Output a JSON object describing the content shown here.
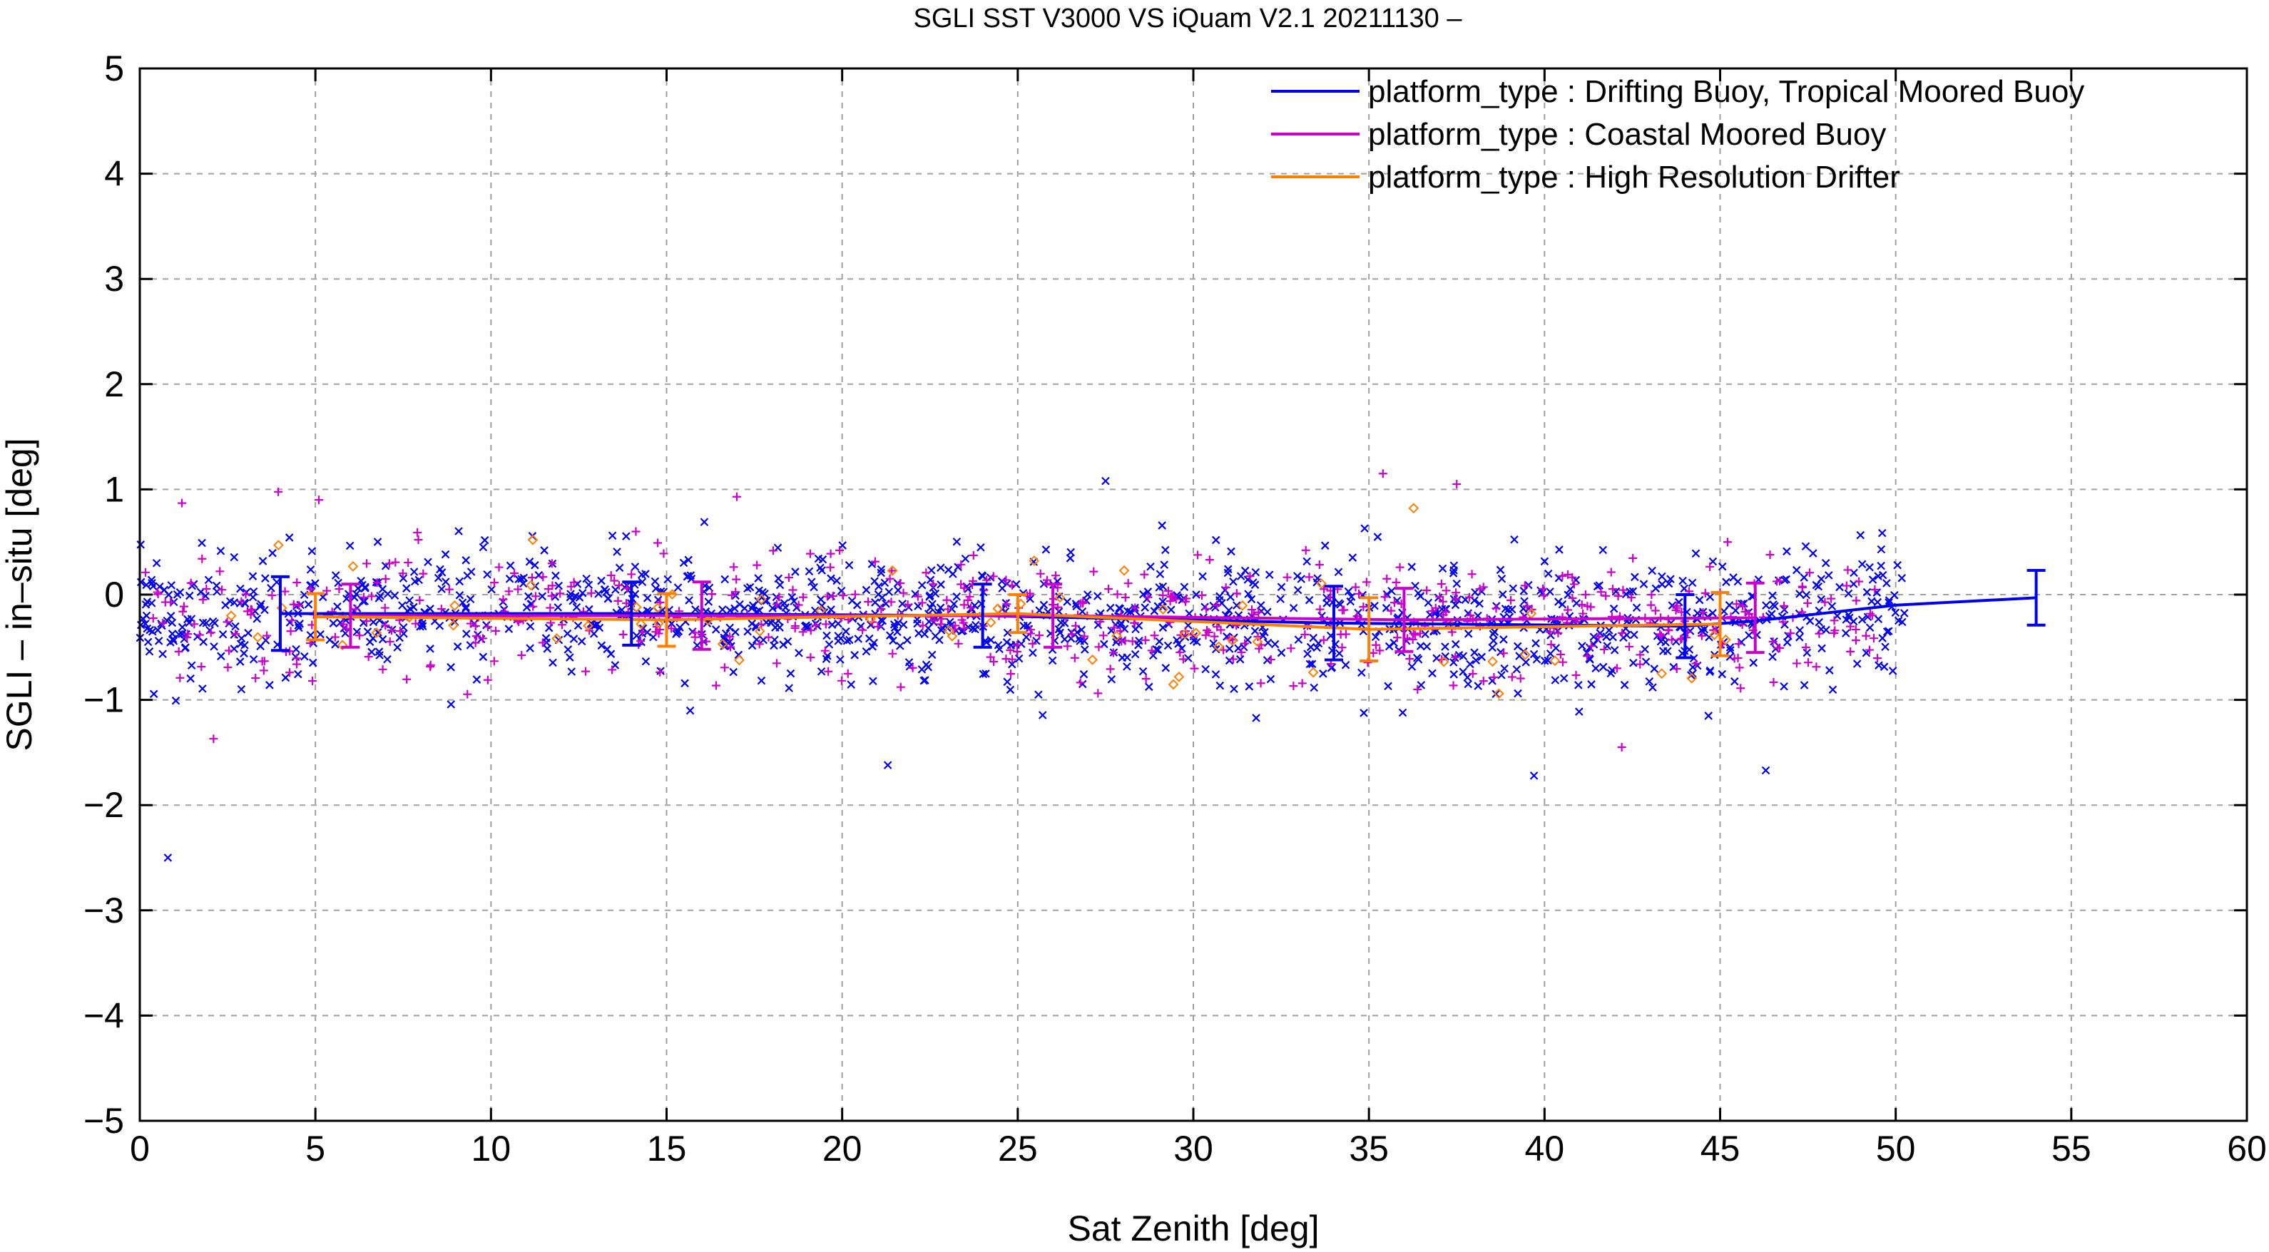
{
  "chart_data": {
    "type": "scatter",
    "title": "SGLI SST V3000 VS iQuam V2.1 20211130 –",
    "xlabel": "Sat Zenith [deg]",
    "ylabel": "SGLI – in–situ [deg]",
    "xlim": [
      0,
      60
    ],
    "ylim": [
      -5,
      5
    ],
    "x_ticks": [
      0,
      5,
      10,
      15,
      20,
      25,
      30,
      35,
      40,
      45,
      50,
      55,
      60
    ],
    "y_ticks": [
      -5,
      -4,
      -3,
      -2,
      -1,
      0,
      1,
      2,
      3,
      4,
      5
    ],
    "x_tick_labels": [
      "0",
      "5",
      "10",
      "15",
      "20",
      "25",
      "30",
      "35",
      "40",
      "45",
      "50",
      "55",
      "60"
    ],
    "y_tick_labels": [
      "−5",
      "−4",
      "−3",
      "−2",
      "−1",
      "0",
      "1",
      "2",
      "3",
      "4",
      "5"
    ],
    "grid": true,
    "legend_position": "top-right",
    "series": [
      {
        "name": "platform_type : Drifting Buoy, Tropical Moored Buoy",
        "color": "#0000ee",
        "marker": "x",
        "mean_x": [
          4,
          14,
          24,
          34,
          44,
          46,
          50,
          54
        ],
        "mean_y": [
          -0.18,
          -0.18,
          -0.2,
          -0.27,
          -0.3,
          -0.25,
          -0.1,
          -0.03
        ],
        "std": [
          0.35,
          0.3,
          0.3,
          0.35,
          0.3,
          0.3,
          0.25,
          0.26
        ],
        "errorbar_x": [
          4,
          14,
          24,
          34,
          44,
          54
        ]
      },
      {
        "name": "platform_type : Coastal Moored Buoy",
        "color": "#cc00cc",
        "marker": "+",
        "mean_x": [
          6,
          16,
          26,
          36,
          46
        ],
        "mean_y": [
          -0.2,
          -0.2,
          -0.2,
          -0.24,
          -0.22
        ],
        "std": [
          0.3,
          0.32,
          0.3,
          0.3,
          0.33
        ],
        "errorbar_x": [
          6,
          16,
          26,
          36,
          46
        ]
      },
      {
        "name": "platform_type : High Resolution Drifter",
        "color": "#ff8000",
        "marker": "diamond",
        "mean_x": [
          5,
          15,
          25,
          35,
          45
        ],
        "mean_y": [
          -0.21,
          -0.24,
          -0.18,
          -0.33,
          -0.28
        ],
        "std": [
          0.22,
          0.25,
          0.18,
          0.3,
          0.3
        ],
        "errorbar_x": [
          5,
          15,
          25,
          35,
          45
        ]
      }
    ],
    "outliers": [
      {
        "series": 0,
        "x": 0.8,
        "y": -2.5
      },
      {
        "series": 0,
        "x": 27.5,
        "y": 1.08
      },
      {
        "series": 0,
        "x": 21.3,
        "y": -1.62
      },
      {
        "series": 0,
        "x": 39.7,
        "y": -1.72
      },
      {
        "series": 0,
        "x": 46.3,
        "y": -1.67
      },
      {
        "series": 1,
        "x": 2.1,
        "y": -1.37
      },
      {
        "series": 1,
        "x": 1.2,
        "y": 0.87
      },
      {
        "series": 1,
        "x": 35.4,
        "y": 1.15
      },
      {
        "series": 1,
        "x": 37.5,
        "y": 1.05
      },
      {
        "series": 1,
        "x": 5.1,
        "y": 0.9
      },
      {
        "series": 1,
        "x": 17.0,
        "y": 0.93
      },
      {
        "series": 1,
        "x": 42.2,
        "y": -1.45
      }
    ]
  }
}
